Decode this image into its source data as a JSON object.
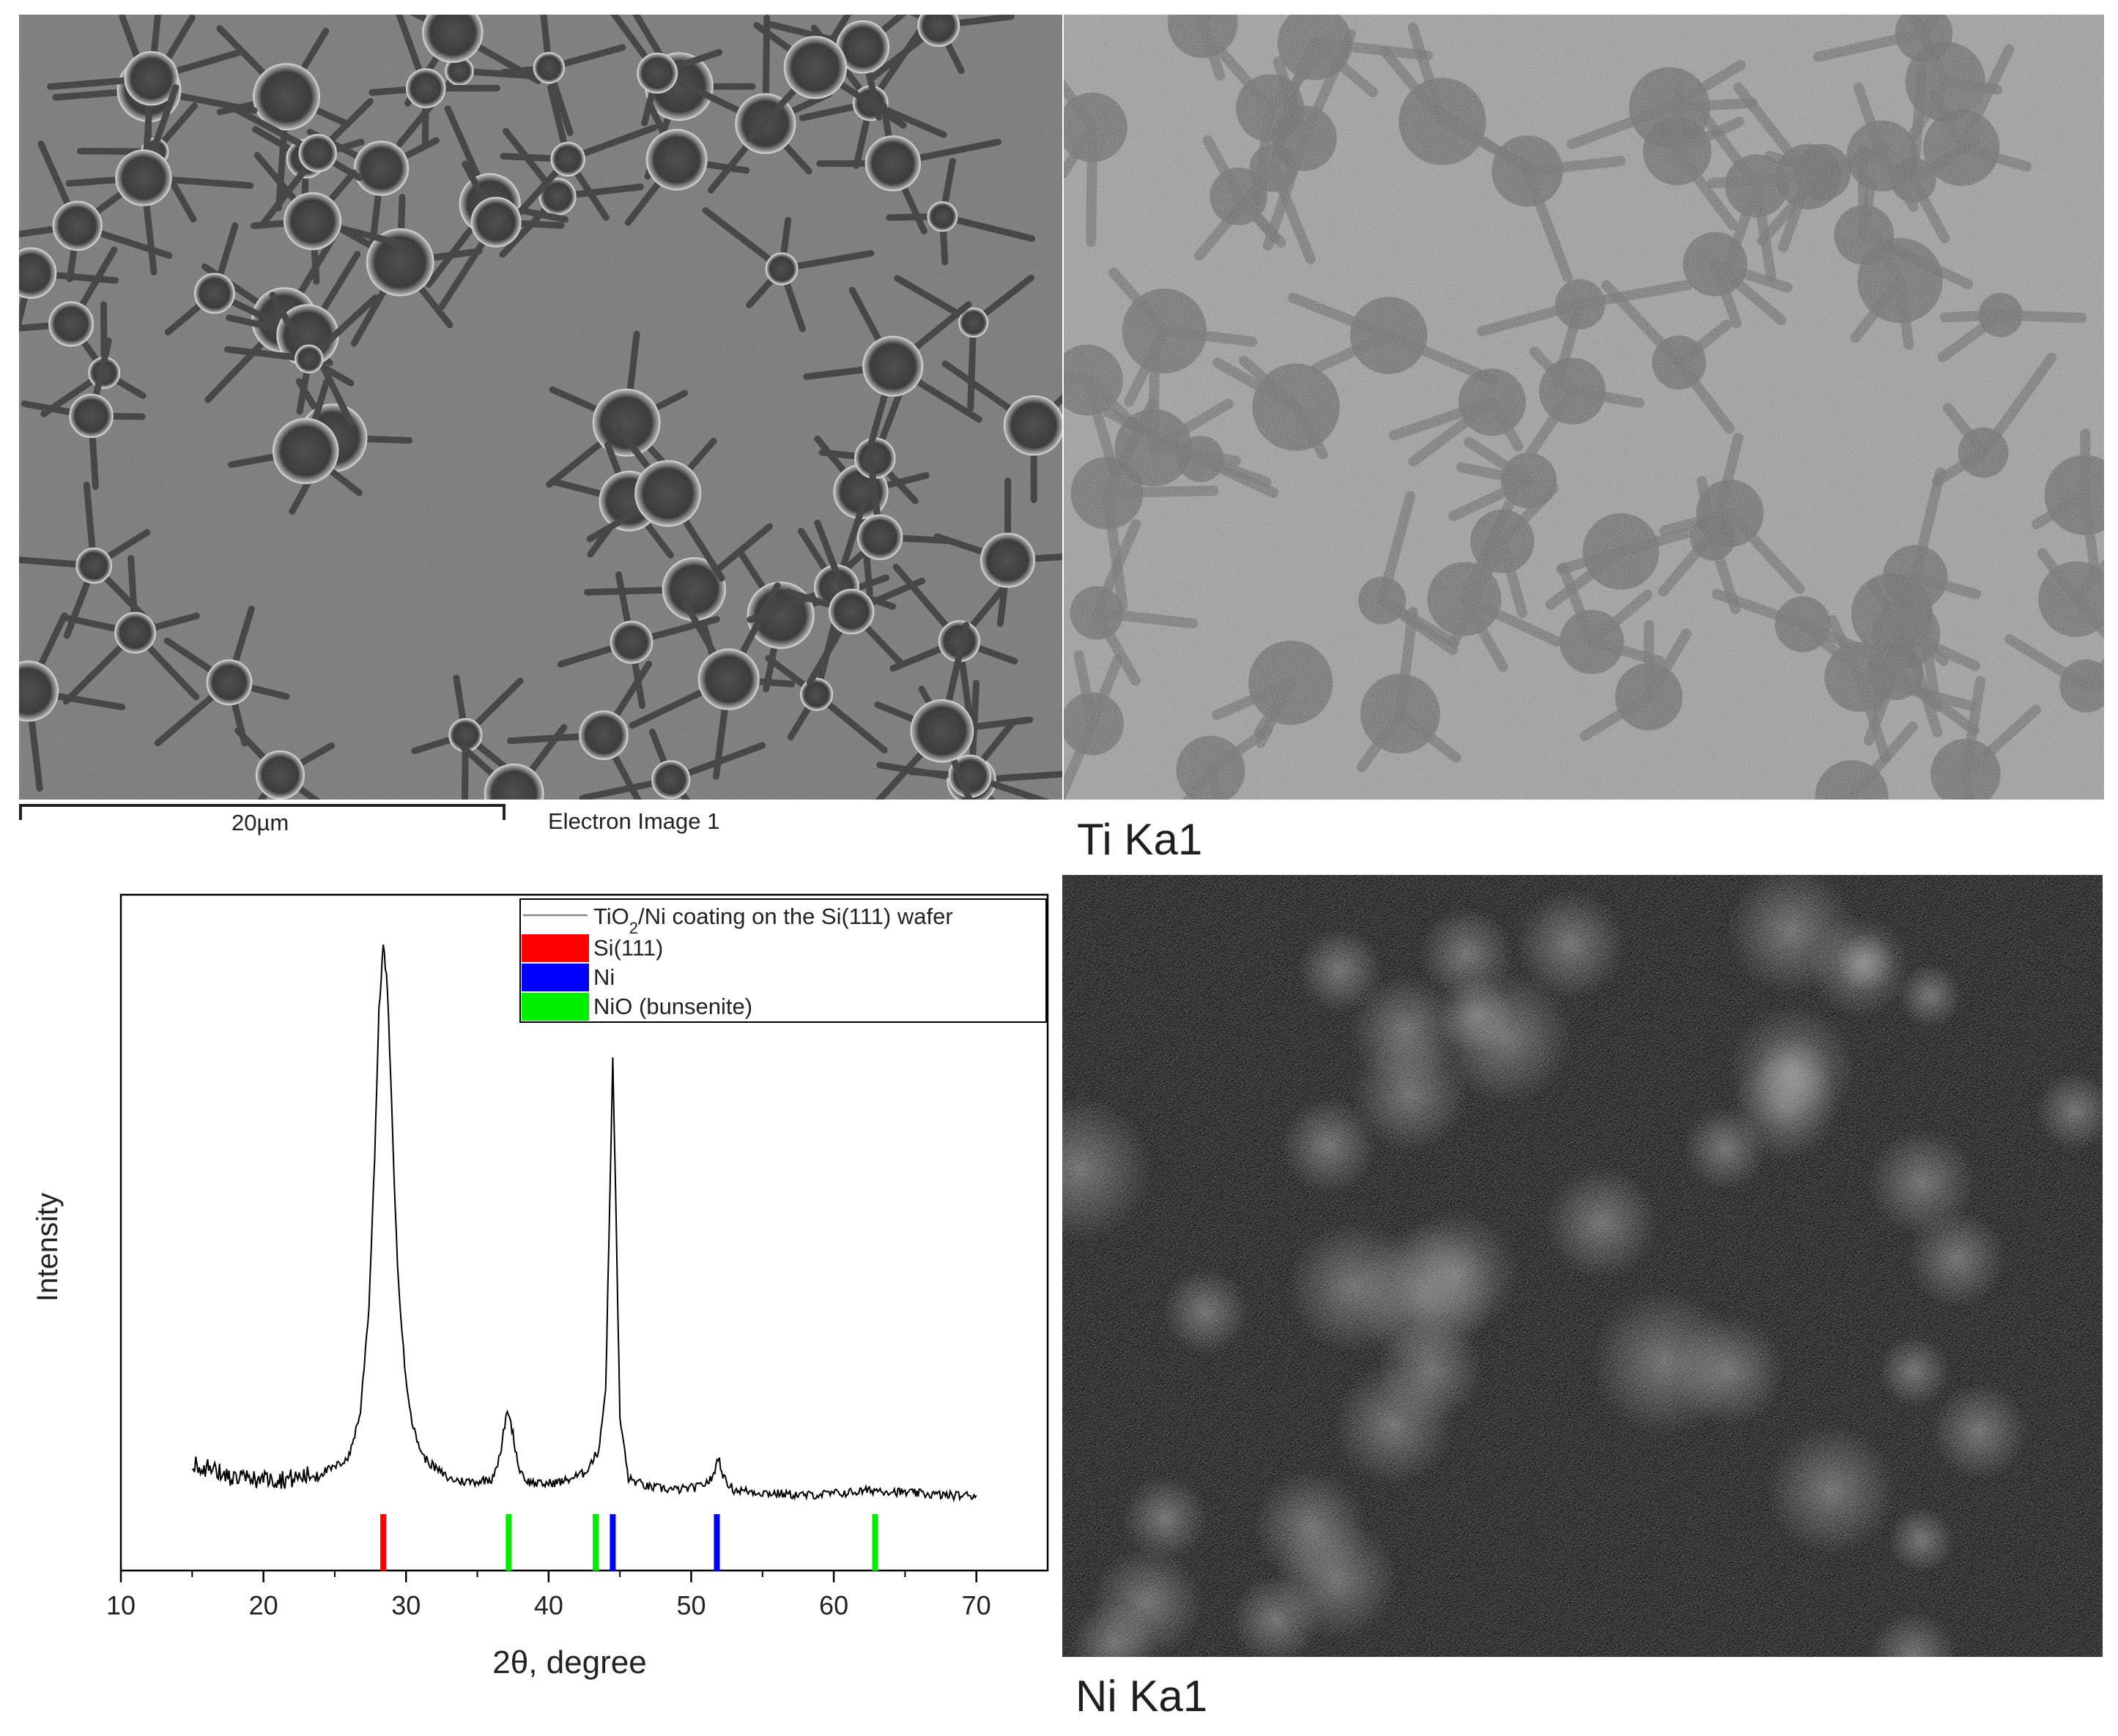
{
  "sem": {
    "scale_label": "20µm",
    "caption": "Electron Image 1"
  },
  "maps": {
    "ti_label": "Ti Ka1",
    "ni_label": "Ni Ka1"
  },
  "chart_data": {
    "type": "line",
    "title": "",
    "xlabel": "2θ, degree",
    "ylabel": "Intensity",
    "xlim": [
      10,
      75
    ],
    "xticks": [
      10,
      20,
      30,
      40,
      50,
      60,
      70
    ],
    "y_ticks_shown": false,
    "legend_position": "top-right",
    "series": [
      {
        "name": "TiO2/Ni coating on the Si(111) wafer",
        "color": "#000000",
        "x": [
          15,
          16,
          18,
          20,
          22,
          24,
          25,
          26,
          26.8,
          27.4,
          27.8,
          28.1,
          28.4,
          28.7,
          29.0,
          29.4,
          29.9,
          30.5,
          31.2,
          32,
          33,
          34,
          35,
          36,
          36.6,
          37.0,
          37.2,
          37.5,
          37.9,
          38.5,
          39.5,
          41,
          42.5,
          43.5,
          44.0,
          44.3,
          44.5,
          44.7,
          45.0,
          45.6,
          47,
          49,
          50.5,
          51.5,
          51.9,
          52.3,
          53,
          55,
          58,
          61,
          63,
          65,
          68,
          70
        ],
        "y": [
          0.07,
          0.06,
          0.04,
          0.04,
          0.04,
          0.05,
          0.06,
          0.08,
          0.16,
          0.35,
          0.62,
          0.88,
          1.0,
          0.92,
          0.7,
          0.42,
          0.24,
          0.13,
          0.08,
          0.06,
          0.04,
          0.035,
          0.035,
          0.04,
          0.08,
          0.15,
          0.16,
          0.12,
          0.06,
          0.035,
          0.03,
          0.035,
          0.05,
          0.09,
          0.2,
          0.55,
          0.8,
          0.55,
          0.15,
          0.04,
          0.025,
          0.02,
          0.025,
          0.04,
          0.08,
          0.04,
          0.02,
          0.015,
          0.01,
          0.015,
          0.02,
          0.015,
          0.01,
          0.01
        ]
      }
    ],
    "reference_lines": [
      {
        "name": "Si(111)",
        "color": "#ff0000",
        "positions": [
          28.4
        ]
      },
      {
        "name": "Ni",
        "color": "#0000ff",
        "positions": [
          44.5,
          51.8
        ]
      },
      {
        "name": "NiO (bunsenite)",
        "color": "#00ee00",
        "positions": [
          37.2,
          43.3,
          62.9
        ]
      }
    ]
  }
}
